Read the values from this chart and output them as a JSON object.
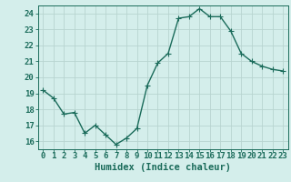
{
  "x": [
    0,
    1,
    2,
    3,
    4,
    5,
    6,
    7,
    8,
    9,
    10,
    11,
    12,
    13,
    14,
    15,
    16,
    17,
    18,
    19,
    20,
    21,
    22,
    23
  ],
  "y": [
    19.2,
    18.7,
    17.7,
    17.8,
    16.5,
    17.0,
    16.4,
    15.8,
    16.2,
    16.8,
    19.5,
    20.9,
    21.5,
    23.7,
    23.8,
    24.3,
    23.8,
    23.8,
    22.9,
    21.5,
    21.0,
    20.7,
    20.5,
    20.4
  ],
  "line_color": "#1a6b5a",
  "marker_color": "#1a6b5a",
  "bg_color": "#d4eeeb",
  "grid_color": "#b8d4d0",
  "xlabel": "Humidex (Indice chaleur)",
  "xlim": [
    -0.5,
    23.5
  ],
  "ylim": [
    15.5,
    24.5
  ],
  "yticks": [
    16,
    17,
    18,
    19,
    20,
    21,
    22,
    23,
    24
  ],
  "xtick_labels": [
    "0",
    "1",
    "2",
    "3",
    "4",
    "5",
    "6",
    "7",
    "8",
    "9",
    "10",
    "11",
    "12",
    "13",
    "14",
    "15",
    "16",
    "17",
    "18",
    "19",
    "20",
    "21",
    "22",
    "23"
  ],
  "tick_color": "#1a6b5a",
  "label_color": "#1a6b5a",
  "fontsize_xlabel": 7.5,
  "fontsize_ticks": 6.5,
  "linewidth": 1.0,
  "markersize": 2.0
}
